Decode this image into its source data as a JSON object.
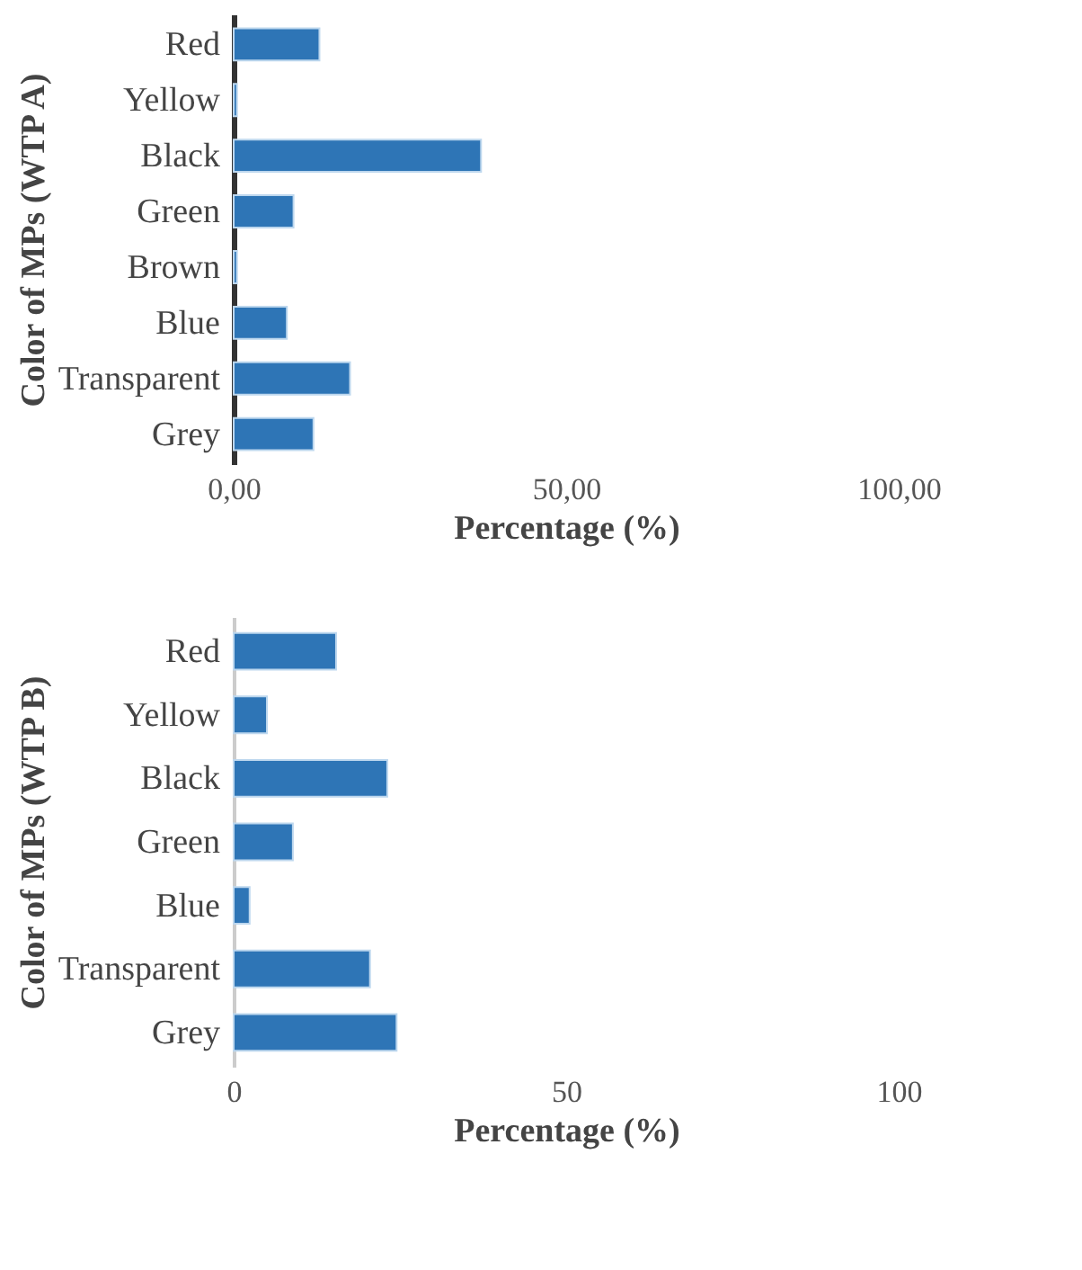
{
  "chart_data": [
    {
      "type": "bar",
      "orientation": "horizontal",
      "categories": [
        "Red",
        "Yellow",
        "Black",
        "Green",
        "Brown",
        "Blue",
        "Transparent",
        "Grey"
      ],
      "values": [
        12.9,
        0.5,
        37.2,
        9.0,
        0.5,
        8.0,
        17.5,
        12.0
      ],
      "color": "#2e75b6",
      "xlim": [
        0,
        100
      ],
      "xticks": [
        {
          "value": 0,
          "label": "0,00"
        },
        {
          "value": 50,
          "label": "50,00"
        },
        {
          "value": 100,
          "label": "100,00"
        }
      ],
      "xlabel": "Percentage (%)",
      "ylabel": "Color of MPs (WTP A)",
      "grid": false
    },
    {
      "type": "bar",
      "orientation": "horizontal",
      "categories": [
        "Red",
        "Yellow",
        "Black",
        "Green",
        "Blue",
        "Transparent",
        "Grey"
      ],
      "values": [
        15.4,
        5.0,
        23.1,
        8.9,
        2.4,
        20.5,
        24.5
      ],
      "color": "#2e75b6",
      "xlim": [
        0,
        100
      ],
      "xticks": [
        0,
        50,
        100
      ],
      "xlabel": "Percentage (%)",
      "ylabel": "Color of MPs (WTP B)",
      "grid": false
    }
  ]
}
